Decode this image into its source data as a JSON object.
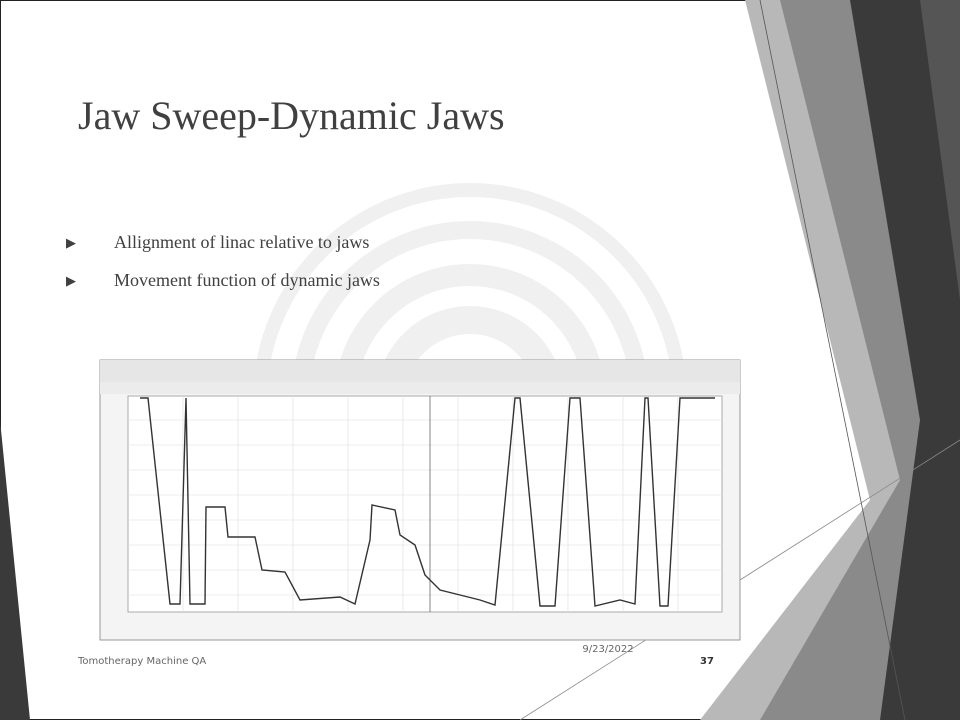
{
  "slide": {
    "title": "Jaw Sweep-Dynamic Jaws",
    "bullets": [
      "Allignment of linac relative to jaws",
      "Movement function of dynamic jaws"
    ],
    "footer": "Tomotherapy Machine QA",
    "date": "9/23/2022",
    "page_number": "37"
  }
}
